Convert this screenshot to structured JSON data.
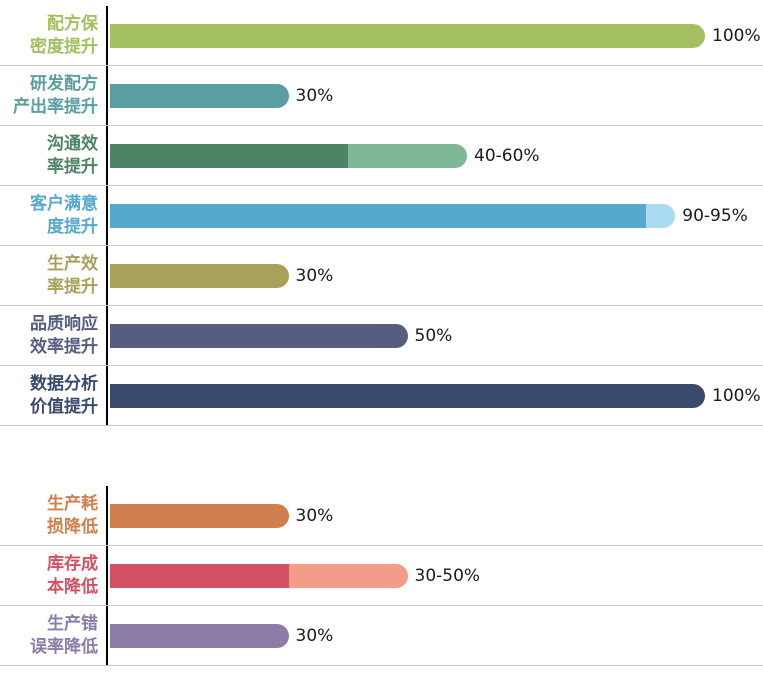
{
  "chart_data": {
    "type": "bar",
    "orientation": "horizontal",
    "unit": "%",
    "axis_max": 100,
    "grid": "row-separators",
    "legend": "none",
    "groups": [
      {
        "rows": [
          {
            "label": "配方保\n密度提升",
            "value_label": "100%",
            "main_pct": 100,
            "ext_pct": 0,
            "main_color": "#a3bf5f",
            "ext_color": null
          },
          {
            "label": "研发配方\n产出率提升",
            "value_label": "30%",
            "main_pct": 30,
            "ext_pct": 0,
            "main_color": "#5b9e9f",
            "ext_color": null
          },
          {
            "label": "沟通效\n率提升",
            "value_label": "40-60%",
            "main_pct": 40,
            "ext_pct": 20,
            "main_color": "#4e8465",
            "ext_color": "#80b797"
          },
          {
            "label": "客户满意\n度提升",
            "value_label": "90-95%",
            "main_pct": 90,
            "ext_pct": 5,
            "main_color": "#57a8cd",
            "ext_color": "#abdbf2"
          },
          {
            "label": "生产效\n率提升",
            "value_label": "30%",
            "main_pct": 30,
            "ext_pct": 0,
            "main_color": "#a7a15c",
            "ext_color": null
          },
          {
            "label": "品质响应\n效率提升",
            "value_label": "50%",
            "main_pct": 50,
            "ext_pct": 0,
            "main_color": "#565e80",
            "ext_color": null
          },
          {
            "label": "数据分析\n价值提升",
            "value_label": "100%",
            "main_pct": 100,
            "ext_pct": 0,
            "main_color": "#3a4a6c",
            "ext_color": null
          }
        ]
      },
      {
        "rows": [
          {
            "label": "生产耗\n损降低",
            "value_label": "30%",
            "main_pct": 30,
            "ext_pct": 0,
            "main_color": "#d0804e",
            "ext_color": null
          },
          {
            "label": "库存成\n本降低",
            "value_label": "30-50%",
            "main_pct": 30,
            "ext_pct": 20,
            "main_color": "#d35062",
            "ext_color": "#f29c8a"
          },
          {
            "label": "生产错\n误率降低",
            "value_label": "30%",
            "main_pct": 30,
            "ext_pct": 0,
            "main_color": "#8b7da7",
            "ext_color": null
          }
        ]
      }
    ],
    "styles": {
      "axis_color": "#000000",
      "separator_color": "#cccccc",
      "value_text_color": "#1a1a1a",
      "background": "#ffffff"
    }
  }
}
